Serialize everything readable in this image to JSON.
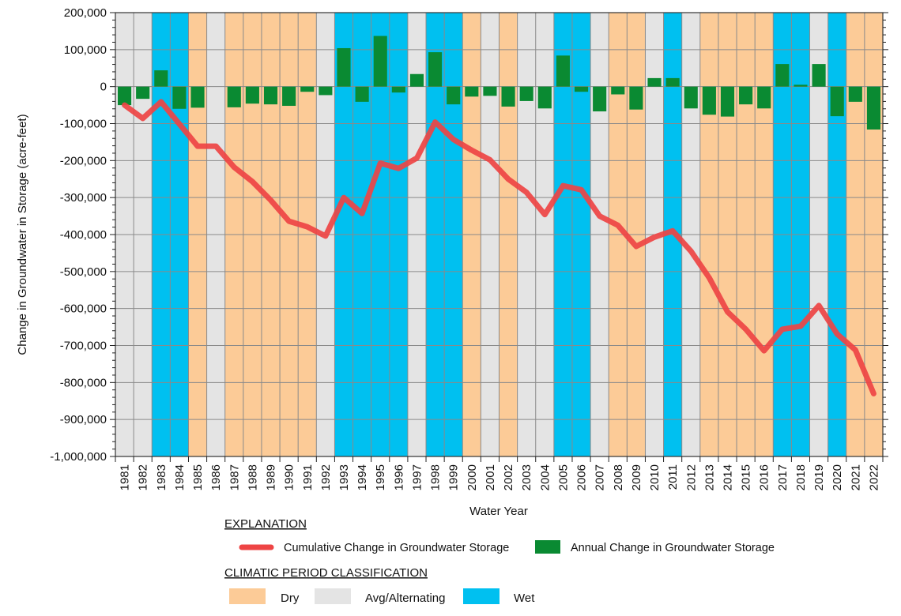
{
  "chart_data": {
    "type": "bar+line",
    "xlabel": "Water Year",
    "ylabel": "Change in Groundwater in Storage (acre-feet)",
    "ylim": [
      -1000000,
      200000
    ],
    "ytick_step": 100000,
    "grid": true,
    "categories": [
      1981,
      1982,
      1983,
      1984,
      1985,
      1986,
      1987,
      1988,
      1989,
      1990,
      1991,
      1992,
      1993,
      1994,
      1995,
      1996,
      1997,
      1998,
      1999,
      2000,
      2001,
      2002,
      2003,
      2004,
      2005,
      2006,
      2007,
      2008,
      2009,
      2010,
      2011,
      2012,
      2013,
      2014,
      2015,
      2016,
      2017,
      2018,
      2019,
      2020,
      2021,
      2022
    ],
    "classification": [
      "avg",
      "avg",
      "wet",
      "wet",
      "dry",
      "avg",
      "dry",
      "dry",
      "dry",
      "dry",
      "dry",
      "avg",
      "wet",
      "wet",
      "wet",
      "wet",
      "avg",
      "wet",
      "wet",
      "dry",
      "avg",
      "dry",
      "avg",
      "avg",
      "wet",
      "wet",
      "avg",
      "dry",
      "dry",
      "avg",
      "wet",
      "avg",
      "dry",
      "dry",
      "dry",
      "dry",
      "wet",
      "wet",
      "avg",
      "wet",
      "dry",
      "dry"
    ],
    "series": [
      {
        "name": "Annual Change in Groundwater Storage",
        "type": "bar",
        "color": "#0a8a32",
        "values": [
          -50000,
          -33000,
          44000,
          -60000,
          -57000,
          0,
          -56000,
          -46000,
          -48000,
          -52000,
          -14000,
          -23000,
          104000,
          -41000,
          137000,
          -16000,
          34000,
          93000,
          -48000,
          -27000,
          -25000,
          -54000,
          -39000,
          -59000,
          84000,
          -14000,
          -67000,
          -21000,
          -62000,
          23000,
          23000,
          -59000,
          -76000,
          -81000,
          -48000,
          -59000,
          61000,
          5000,
          61000,
          -80000,
          -41000,
          -116000
        ]
      },
      {
        "name": "Cumulative Change in Groundwater Storage",
        "type": "line",
        "color": "#ee4444",
        "values": [
          -50000,
          -86000,
          -41000,
          -101000,
          -161000,
          -161000,
          -218000,
          -257000,
          -307000,
          -364000,
          -379000,
          -404000,
          -300000,
          -343000,
          -207000,
          -221000,
          -193000,
          -96000,
          -143000,
          -172000,
          -198000,
          -250000,
          -286000,
          -346000,
          -268000,
          -279000,
          -350000,
          -375000,
          -432000,
          -407000,
          -390000,
          -445000,
          -517000,
          -609000,
          -656000,
          -714000,
          -656000,
          -648000,
          -592000,
          -669000,
          -712000,
          -830000
        ]
      }
    ],
    "class_colors": {
      "dry": "#fccb97",
      "avg": "#e4e4e4",
      "wet": "#00c0f0"
    }
  },
  "legend": {
    "explanation_title": "EXPLANATION",
    "cumulative_label": "Cumulative Change in Groundwater Storage",
    "annual_label": "Annual Change in Groundwater Storage",
    "classification_title": "CLIMATIC PERIOD CLASSIFICATION",
    "dry_label": "Dry",
    "avg_label": "Avg/Alternating",
    "wet_label": "Wet"
  }
}
